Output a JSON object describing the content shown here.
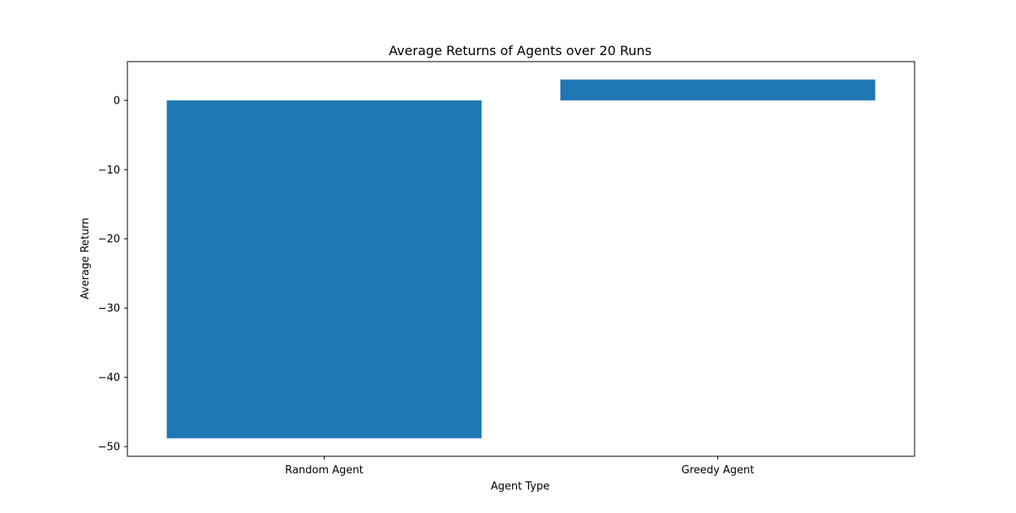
{
  "chart_data": {
    "type": "bar",
    "title": "Average Returns of Agents over 20 Runs",
    "xlabel": "Agent Type",
    "ylabel": "Average Return",
    "categories": [
      "Random Agent",
      "Greedy Agent"
    ],
    "values": [
      -48.8,
      3.0
    ],
    "ylim": [
      -51.4,
      5.6
    ],
    "yticks": [
      0,
      -10,
      -20,
      -30,
      -40,
      -50
    ],
    "ytick_labels": [
      "0",
      "−10",
      "−20",
      "−30",
      "−40",
      "−50"
    ],
    "bar_color": "#1f77b4",
    "grid": false,
    "legend": false
  }
}
